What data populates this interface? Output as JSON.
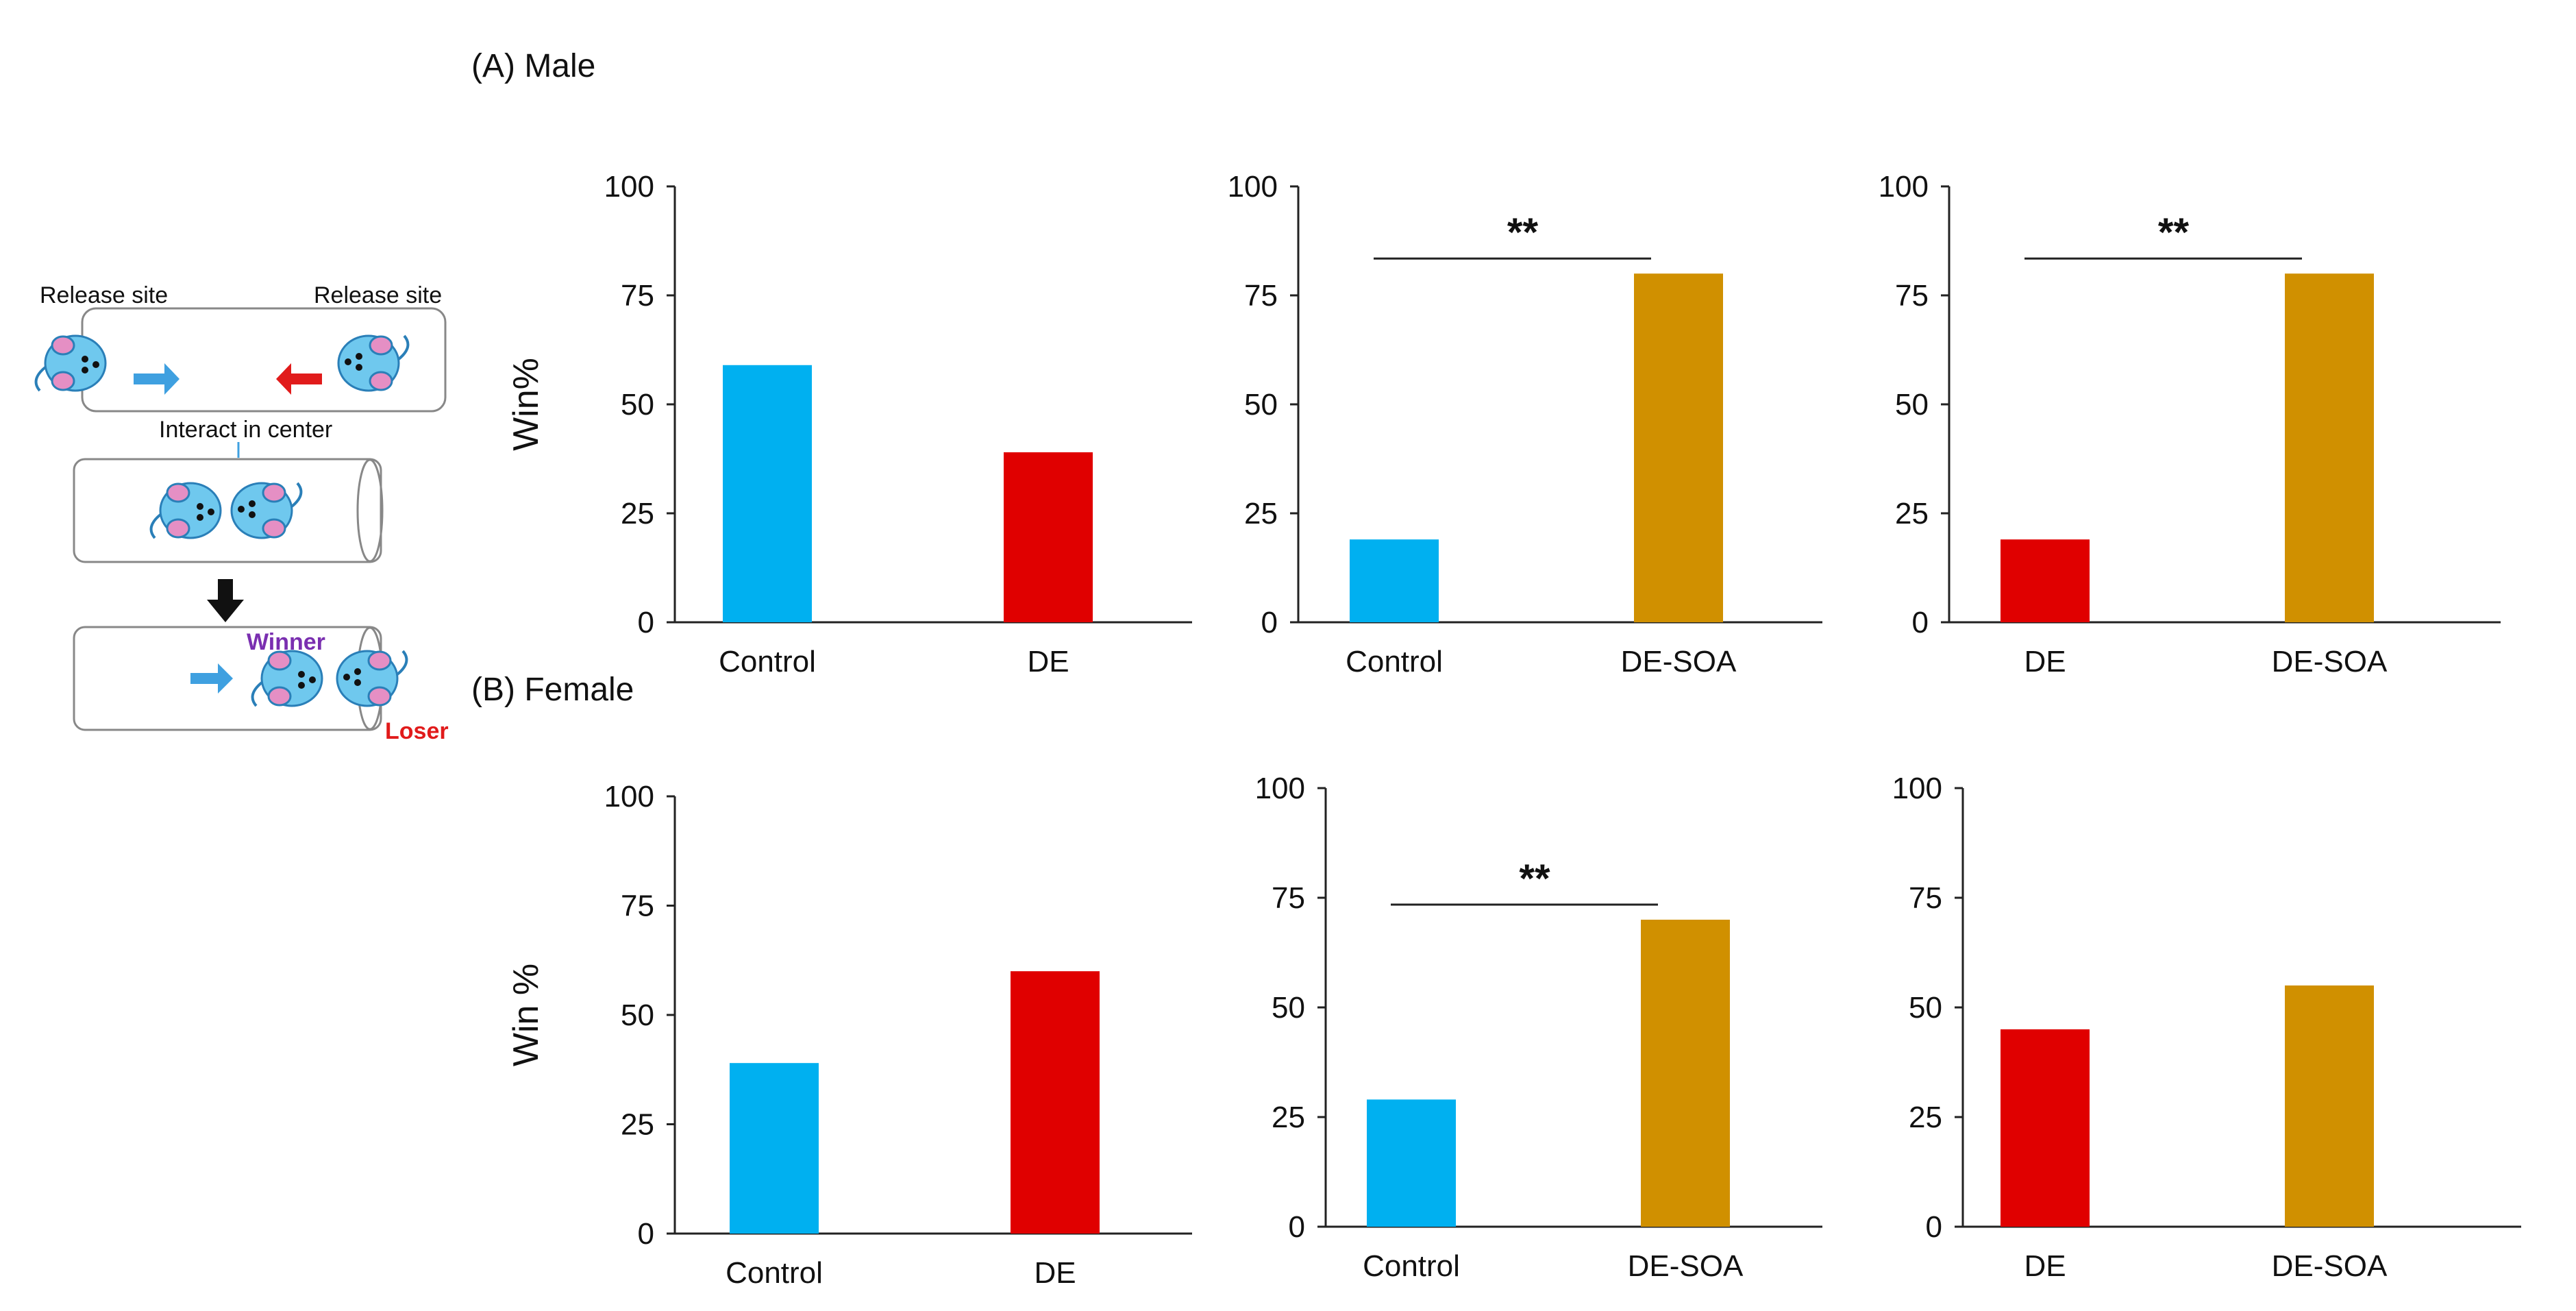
{
  "panel_labels": {
    "a": "(A) Male",
    "b": "(B) Female"
  },
  "diagram": {
    "release_site_left": "Release site",
    "release_site_right": "Release site",
    "interact_label": "Interact in center",
    "winner_label": "Winner",
    "loser_label": "Loser"
  },
  "colors": {
    "control": "#00b0f0",
    "de": "#e00000",
    "desoa": "#d09000"
  },
  "chart_data": [
    {
      "type": "bar",
      "panel": "A",
      "ylabel": "Win%",
      "ylim": [
        0,
        100
      ],
      "yticks": [
        0,
        25,
        50,
        75,
        100
      ],
      "categories": [
        "Control",
        "DE"
      ],
      "values": [
        59,
        39
      ],
      "bar_colors": [
        "control",
        "de"
      ],
      "significance": ""
    },
    {
      "type": "bar",
      "panel": "A",
      "ylabel": "",
      "ylim": [
        0,
        100
      ],
      "yticks": [
        0,
        25,
        50,
        75,
        100
      ],
      "categories": [
        "Control",
        "DE-SOA"
      ],
      "values": [
        19,
        80
      ],
      "bar_colors": [
        "control",
        "desoa"
      ],
      "significance": "**"
    },
    {
      "type": "bar",
      "panel": "A",
      "ylabel": "",
      "ylim": [
        0,
        100
      ],
      "yticks": [
        0,
        25,
        50,
        75,
        100
      ],
      "categories": [
        "DE",
        "DE-SOA"
      ],
      "values": [
        19,
        80
      ],
      "bar_colors": [
        "de",
        "desoa"
      ],
      "significance": "**"
    },
    {
      "type": "bar",
      "panel": "B",
      "ylabel": "Win %",
      "ylim": [
        0,
        100
      ],
      "yticks": [
        0,
        25,
        50,
        75,
        100
      ],
      "categories": [
        "Control",
        "DE"
      ],
      "values": [
        39,
        60
      ],
      "bar_colors": [
        "control",
        "de"
      ],
      "significance": ""
    },
    {
      "type": "bar",
      "panel": "B",
      "ylabel": "",
      "ylim": [
        0,
        100
      ],
      "yticks": [
        0,
        25,
        50,
        75,
        100
      ],
      "categories": [
        "Control",
        "DE-SOA"
      ],
      "values": [
        29,
        70
      ],
      "bar_colors": [
        "control",
        "desoa"
      ],
      "significance": "**"
    },
    {
      "type": "bar",
      "panel": "B",
      "ylabel": "",
      "ylim": [
        0,
        100
      ],
      "yticks": [
        0,
        25,
        50,
        75,
        100
      ],
      "categories": [
        "DE",
        "DE-SOA"
      ],
      "values": [
        45,
        55
      ],
      "bar_colors": [
        "de",
        "desoa"
      ],
      "significance": ""
    }
  ]
}
